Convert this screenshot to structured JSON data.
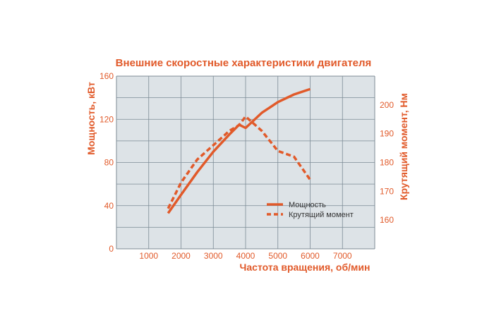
{
  "chart_data": {
    "type": "line",
    "title": "Внешние скоростные характеристики двигателя",
    "xlabel": "Частота вращения, об/мин",
    "ylabel_left": "Мощность, кВт",
    "ylabel_right": "Крутящий момент, Нм",
    "xlim": [
      0,
      8000
    ],
    "ylim_left": [
      0,
      160
    ],
    "ylim_right": [
      150,
      210
    ],
    "x_ticks": [
      "1000",
      "2000",
      "3000",
      "4000",
      "5000",
      "6000",
      "7000"
    ],
    "y_left_ticks": [
      "0",
      "40",
      "80",
      "120",
      "160"
    ],
    "y_right_ticks": [
      "160",
      "170",
      "180",
      "190",
      "200"
    ],
    "grid": true,
    "legend_position": "lower-right inside plot",
    "colors": {
      "line": "#e15a2a",
      "grid": "#7d8b96",
      "plot_bg": "#dde3e7"
    },
    "series": [
      {
        "name": "Мощность",
        "axis": "left",
        "style": "solid",
        "x": [
          1600,
          2000,
          2500,
          3000,
          3500,
          3800,
          4000,
          4500,
          5000,
          5500,
          6000
        ],
        "values": [
          33,
          50,
          71,
          90,
          106,
          115,
          112,
          126,
          136,
          143,
          148
        ]
      },
      {
        "name": "Крутящий момент",
        "axis": "right",
        "style": "dashed",
        "x": [
          1600,
          2000,
          2500,
          3000,
          3500,
          3800,
          4000,
          4500,
          5000,
          5500,
          6000
        ],
        "values": [
          164,
          173,
          181,
          186,
          191,
          193,
          196,
          191,
          184,
          182,
          174
        ]
      }
    ]
  }
}
